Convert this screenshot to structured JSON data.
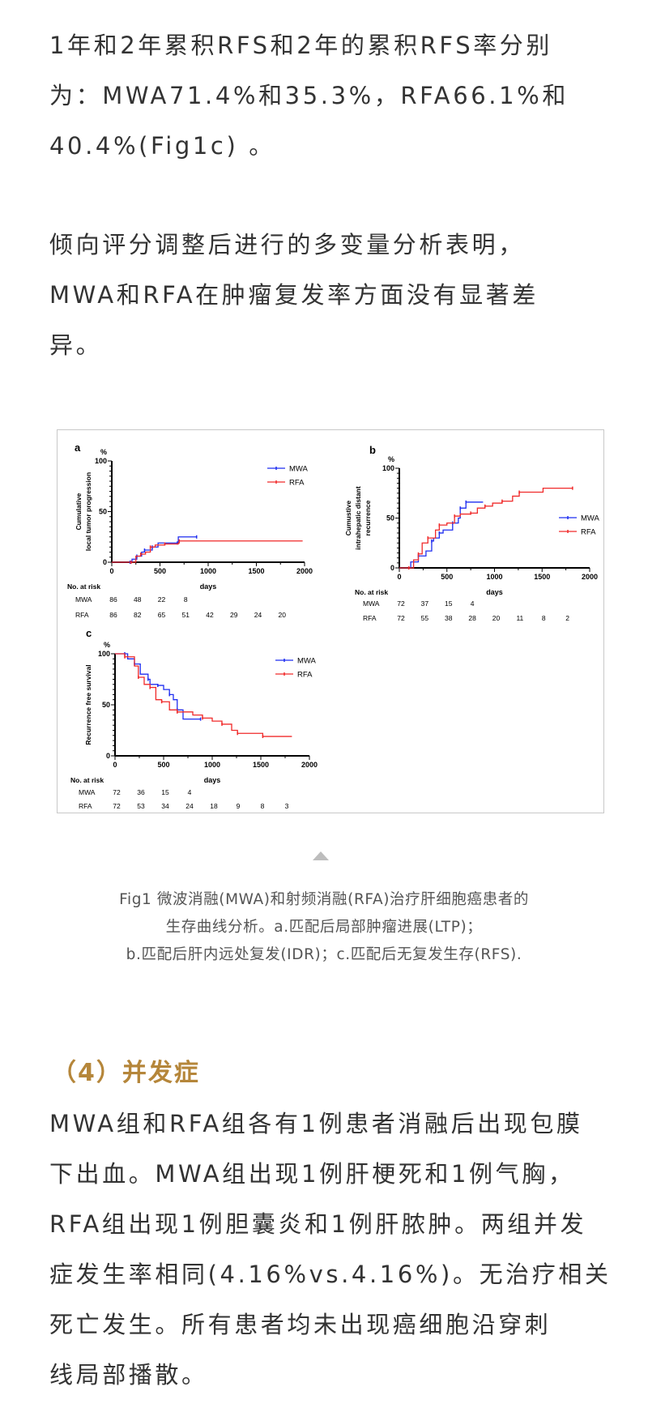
{
  "paragraph1": {
    "lines": [
      "1年和2年累积RFS和2年的累积RFS率分别",
      "为：MWA71.4%和35.3%，RFA66.1%和",
      "40.4%(Fig1c) 。"
    ]
  },
  "paragraph2": {
    "lines": [
      "倾向评分调整后进行的多变量分析表明，",
      "MWA和RFA在肿瘤复发率方面没有显著差",
      "异。"
    ]
  },
  "figure_caption": {
    "lines": [
      "Fig1 微波消融(MWA)和射频消融(RFA)治疗肝细胞癌患者的",
      "生存曲线分析。a.匹配后局部肿瘤进展(LTP)；",
      "b.匹配后肝内远处复发(IDR)；c.匹配后无复发生存(RFS)."
    ]
  },
  "section_heading": "（4）并发症",
  "paragraph3": {
    "lines": [
      "MWA组和RFA组各有1例患者消融后出现包膜",
      "下出血。MWA组出现1例肝梗死和1例气胸，",
      "RFA组出现1例胆囊炎和1例肝脓肿。两组并发",
      "症发生率相同(4.16%vs.4.16%)。无治疗相关",
      "死亡发生。所有患者均未出现癌细胞沿穿刺",
      "线局部播散。"
    ]
  },
  "colors": {
    "heading": "#b5863a",
    "mwa": "#1f2ef0",
    "rfa": "#f02a2a",
    "text": "#333333"
  },
  "chart_data": [
    {
      "type": "line",
      "panel_label": "a",
      "unit_label": "%",
      "ylabel_lines": [
        "Cumulative",
        "local tumor progression"
      ],
      "xlabel": "days",
      "xlim": [
        0,
        2000
      ],
      "ylim": [
        0,
        100
      ],
      "xticks": [
        0,
        500,
        1000,
        1500,
        2000
      ],
      "yticks": [
        0,
        50,
        100
      ],
      "legend_position": "top-right",
      "series": [
        {
          "name": "MWA",
          "color": "#1f2ef0",
          "points": [
            [
              0,
              0
            ],
            [
              190,
              0
            ],
            [
              210,
              3
            ],
            [
              260,
              6
            ],
            [
              310,
              10
            ],
            [
              340,
              12
            ],
            [
              380,
              12
            ],
            [
              420,
              15
            ],
            [
              480,
              19
            ],
            [
              680,
              19
            ],
            [
              690,
              25
            ],
            [
              880,
              25
            ]
          ]
        },
        {
          "name": "RFA",
          "color": "#f02a2a",
          "points": [
            [
              0,
              0
            ],
            [
              200,
              0
            ],
            [
              250,
              6
            ],
            [
              300,
              8
            ],
            [
              350,
              10
            ],
            [
              400,
              15
            ],
            [
              450,
              17
            ],
            [
              550,
              18
            ],
            [
              690,
              19
            ],
            [
              700,
              21
            ],
            [
              1980,
              21
            ]
          ]
        }
      ],
      "risk_table": {
        "title": "No. at risk",
        "rows": [
          {
            "label": "MWA",
            "values": [
              "86",
              "48",
              "22",
              "8"
            ]
          },
          {
            "label": "RFA",
            "values": [
              "86",
              "82",
              "65",
              "51",
              "42",
              "29",
              "24",
              "20"
            ]
          }
        ]
      }
    },
    {
      "type": "line",
      "panel_label": "b",
      "unit_label": "%",
      "ylabel_lines": [
        "Cumustive",
        "intrahepatic distant",
        "recurrence"
      ],
      "xlabel": "days",
      "xlim": [
        0,
        2000
      ],
      "ylim": [
        0,
        100
      ],
      "xticks": [
        0,
        500,
        1000,
        1500,
        2000
      ],
      "yticks": [
        0,
        50,
        100
      ],
      "legend_position": "right",
      "series": [
        {
          "name": "MWA",
          "color": "#1f2ef0",
          "points": [
            [
              0,
              0
            ],
            [
              100,
              0
            ],
            [
              120,
              6
            ],
            [
              200,
              12
            ],
            [
              280,
              17
            ],
            [
              340,
              27
            ],
            [
              360,
              30
            ],
            [
              420,
              35
            ],
            [
              460,
              38
            ],
            [
              560,
              45
            ],
            [
              620,
              50
            ],
            [
              640,
              60
            ],
            [
              680,
              60
            ],
            [
              700,
              66
            ],
            [
              880,
              66
            ]
          ]
        },
        {
          "name": "RFA",
          "color": "#f02a2a",
          "points": [
            [
              0,
              0
            ],
            [
              100,
              0
            ],
            [
              150,
              8
            ],
            [
              200,
              14
            ],
            [
              240,
              25
            ],
            [
              300,
              30
            ],
            [
              380,
              38
            ],
            [
              420,
              43
            ],
            [
              500,
              45
            ],
            [
              580,
              52
            ],
            [
              640,
              54
            ],
            [
              750,
              55
            ],
            [
              820,
              60
            ],
            [
              900,
              62
            ],
            [
              980,
              65
            ],
            [
              1080,
              67
            ],
            [
              1190,
              72
            ],
            [
              1260,
              76
            ],
            [
              1510,
              80
            ],
            [
              1820,
              80
            ]
          ]
        }
      ],
      "risk_table": {
        "title": "No. at risk",
        "rows": [
          {
            "label": "MWA",
            "values": [
              "72",
              "37",
              "15",
              "4"
            ]
          },
          {
            "label": "RFA",
            "values": [
              "72",
              "55",
              "38",
              "28",
              "20",
              "11",
              "8",
              "2"
            ]
          }
        ]
      }
    },
    {
      "type": "line",
      "panel_label": "c",
      "unit_label": "%",
      "ylabel_lines": [
        "Recurrence free survival"
      ],
      "xlabel": "days",
      "xlim": [
        0,
        2000
      ],
      "ylim": [
        0,
        100
      ],
      "xticks": [
        0,
        500,
        1000,
        1500,
        2000
      ],
      "yticks": [
        0,
        50,
        100
      ],
      "legend_position": "top-right",
      "series": [
        {
          "name": "MWA",
          "color": "#1f2ef0",
          "points": [
            [
              0,
              100
            ],
            [
              100,
              100
            ],
            [
              130,
              95
            ],
            [
              200,
              90
            ],
            [
              260,
              80
            ],
            [
              340,
              75
            ],
            [
              360,
              70
            ],
            [
              440,
              69
            ],
            [
              500,
              65
            ],
            [
              560,
              60
            ],
            [
              600,
              55
            ],
            [
              640,
              45
            ],
            [
              700,
              36
            ],
            [
              880,
              36
            ]
          ]
        },
        {
          "name": "RFA",
          "color": "#f02a2a",
          "points": [
            [
              0,
              100
            ],
            [
              100,
              97
            ],
            [
              200,
              88
            ],
            [
              240,
              77
            ],
            [
              300,
              70
            ],
            [
              360,
              67
            ],
            [
              420,
              55
            ],
            [
              480,
              53
            ],
            [
              560,
              45
            ],
            [
              640,
              43
            ],
            [
              800,
              40
            ],
            [
              900,
              37
            ],
            [
              1000,
              34
            ],
            [
              1100,
              31
            ],
            [
              1200,
              25
            ],
            [
              1260,
              22
            ],
            [
              1500,
              22
            ],
            [
              1520,
              19
            ],
            [
              1820,
              19
            ]
          ]
        }
      ],
      "risk_table": {
        "title": "No. at risk",
        "rows": [
          {
            "label": "MWA",
            "values": [
              "72",
              "36",
              "15",
              "4"
            ]
          },
          {
            "label": "RFA",
            "values": [
              "72",
              "53",
              "34",
              "24",
              "18",
              "9",
              "8",
              "3"
            ]
          }
        ]
      }
    }
  ]
}
